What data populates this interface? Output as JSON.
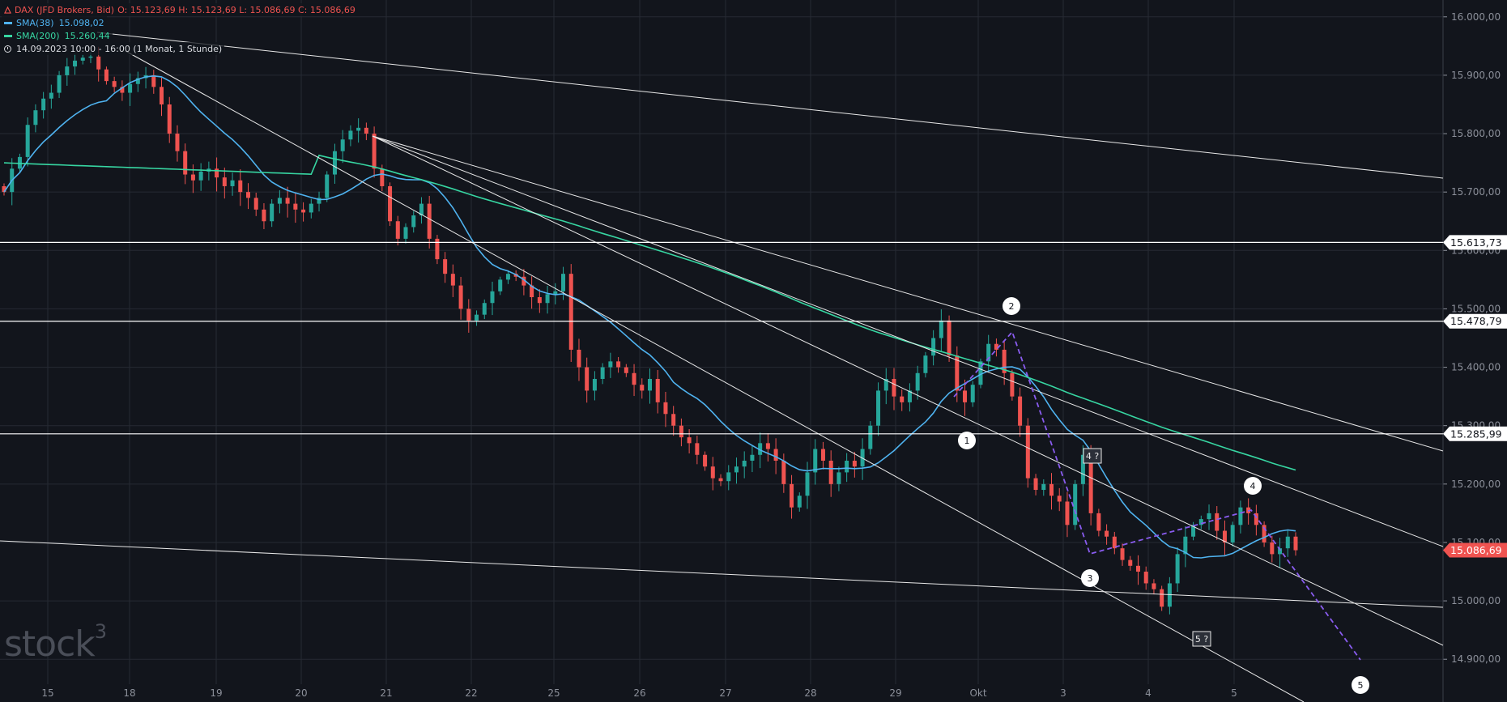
{
  "legend": {
    "symbol": "DAX (JFD Brokers, Bid)",
    "ohlc": "O: 15.123,69  H: 15.123,69  L: 15.086,69  C: 15.086,69",
    "sma38_label": "SMA(38)",
    "sma38_value": "15.098,02",
    "sma200_label": "SMA(200)",
    "sma200_value": "15.260,44",
    "period": "14.09.2023 10:00 - 16:00  (1 Monat, 1 Stunde)"
  },
  "watermark": "stock",
  "watermark_sup": "3",
  "colors": {
    "background": "#12151c",
    "grid": "#262a33",
    "up": "#26a69a",
    "down": "#ef5350",
    "sma38": "#4fb3f0",
    "sma200": "#37d6a2",
    "trendline": "#e8e8e8",
    "wave": "#8a5cf0",
    "price_marker": "#ef5350"
  },
  "chart_data": {
    "type": "candlestick",
    "x_ticks": [
      "15",
      "18",
      "19",
      "20",
      "21",
      "22",
      "25",
      "26",
      "27",
      "28",
      "29",
      "Okt",
      "3",
      "4",
      "5"
    ],
    "y_ticks": [
      "16.000,00",
      "15.900,00",
      "15.800,00",
      "15.700,00",
      "15.600,00",
      "15.500,00",
      "15.400,00",
      "15.300,00",
      "15.200,00",
      "15.100,00",
      "15.000,00",
      "14.900,00"
    ],
    "y_tick_values": [
      16000,
      15900,
      15800,
      15700,
      15600,
      15500,
      15400,
      15300,
      15200,
      15100,
      15000,
      14900
    ],
    "ylim": [
      14840,
      16035
    ],
    "close_path": [
      15700,
      15740,
      15760,
      15815,
      15840,
      15860,
      15870,
      15900,
      15915,
      15925,
      15930,
      15932,
      15910,
      15890,
      15880,
      15870,
      15885,
      15895,
      15900,
      15880,
      15850,
      15800,
      15770,
      15730,
      15720,
      15735,
      15740,
      15725,
      15710,
      15720,
      15700,
      15690,
      15670,
      15650,
      15680,
      15690,
      15680,
      15670,
      15665,
      15680,
      15690,
      15730,
      15770,
      15790,
      15805,
      15810,
      15800,
      15740,
      15710,
      15650,
      15620,
      15640,
      15660,
      15680,
      15620,
      15585,
      15560,
      15540,
      15500,
      15480,
      15490,
      15510,
      15530,
      15550,
      15560,
      15555,
      15540,
      15520,
      15510,
      15525,
      15530,
      15560,
      15430,
      15400,
      15360,
      15380,
      15400,
      15410,
      15400,
      15390,
      15370,
      15360,
      15380,
      15340,
      15320,
      15300,
      15280,
      15270,
      15250,
      15230,
      15210,
      15205,
      15220,
      15230,
      15240,
      15250,
      15270,
      15260,
      15240,
      15200,
      15160,
      15180,
      15220,
      15260,
      15240,
      15200,
      15220,
      15240,
      15230,
      15260,
      15300,
      15360,
      15380,
      15350,
      15340,
      15360,
      15390,
      15420,
      15450,
      15480,
      15420,
      15360,
      15340,
      15370,
      15410,
      15440,
      15430,
      15390,
      15350,
      15300,
      15210,
      15190,
      15200,
      15180,
      15170,
      15130,
      15200,
      15250,
      15150,
      15120,
      15110,
      15090,
      15070,
      15060,
      15050,
      15030,
      15020,
      14990,
      15030,
      15080,
      15110,
      15130,
      15140,
      15150,
      15120,
      15100,
      15130,
      15160,
      15150,
      15130,
      15100,
      15080,
      15090,
      15110,
      15086.69
    ],
    "sma38": {
      "name": "SMA(38)",
      "last": 15098.02
    },
    "sma200": {
      "name": "SMA(200)",
      "last": 15260.44
    },
    "horizontal_levels": [
      {
        "label": "15.613,73",
        "value": 15613.73,
        "color": "#ffffff",
        "text_color": "#12151c"
      },
      {
        "label": "15.478,79",
        "value": 15478.79,
        "color": "#ffffff",
        "text_color": "#12151c"
      },
      {
        "label": "15.285,99",
        "value": 15285.99,
        "color": "#ffffff",
        "text_color": "#12151c"
      }
    ],
    "last_price": {
      "label": "15.086,69",
      "value": 15086.69
    },
    "wave_labels": [
      "1",
      "2",
      "3",
      "4",
      "5"
    ],
    "boxed_labels": [
      "4 ?",
      "5 ?"
    ]
  }
}
